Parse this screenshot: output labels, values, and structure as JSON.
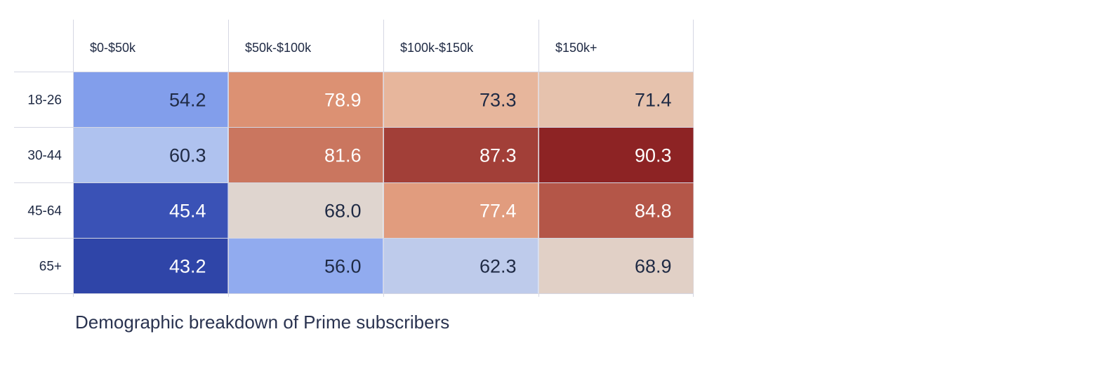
{
  "chart_data": {
    "type": "heatmap",
    "title": "",
    "caption": "Demographic breakdown of Prime subscribers",
    "columns": [
      "$0-$50k",
      "$50k-$100k",
      "$100k-$150k",
      "$150k+"
    ],
    "rows": [
      "18-26",
      "30-44",
      "45-64",
      "65+"
    ],
    "values": [
      [
        54.2,
        78.9,
        73.3,
        71.4
      ],
      [
        60.3,
        81.6,
        87.3,
        90.3
      ],
      [
        45.4,
        68.0,
        77.4,
        84.8
      ],
      [
        43.2,
        56.0,
        62.3,
        68.9
      ]
    ],
    "value_range": [
      43.2,
      90.3
    ],
    "colorscale": "coolwarm",
    "gridlines": true,
    "colors": {
      "cool_end": "#2f45a8",
      "mid": "#dddcdb",
      "warm_end": "#8d2324",
      "text_dark": "#1f2a44",
      "text_light": "#ffffff",
      "grid": "#d5d7e3"
    }
  }
}
